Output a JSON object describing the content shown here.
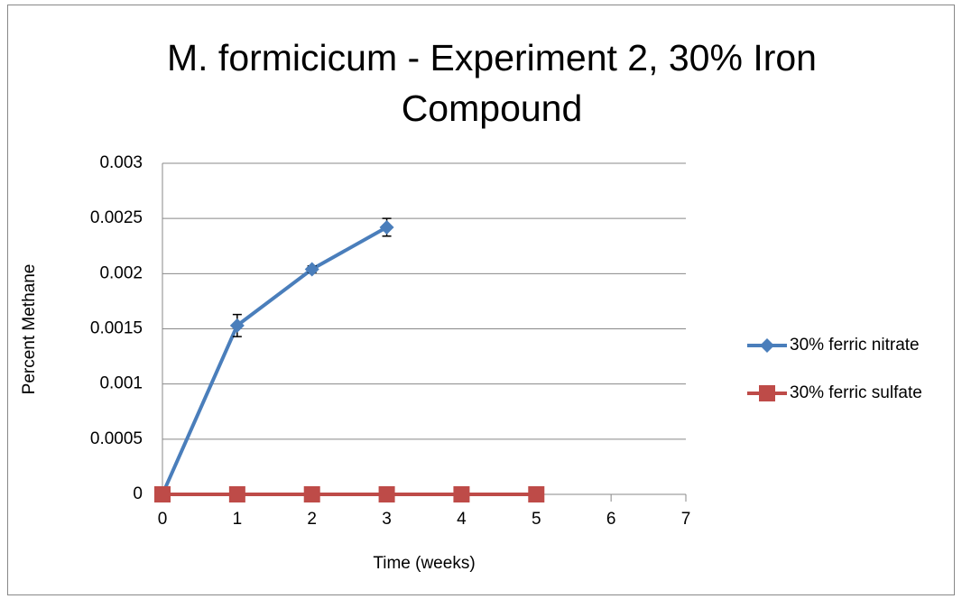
{
  "chart_data": {
    "type": "line",
    "title": "M. formicicum - Experiment 2, 30% Iron Compound",
    "xlabel": "Time (weeks)",
    "ylabel": "Percent Methane",
    "series": [
      {
        "name": "30% ferric nitrate",
        "color": "#4a7ebb",
        "marker": "diamond",
        "x": [
          0,
          1,
          2,
          3
        ],
        "values": [
          0,
          0.00153,
          0.00204,
          0.00242
        ],
        "errors": [
          null,
          0.0001,
          3e-05,
          8e-05
        ]
      },
      {
        "name": "30% ferric sulfate",
        "color": "#be4b48",
        "marker": "square",
        "x": [
          0,
          1,
          2,
          3,
          4,
          5
        ],
        "values": [
          0,
          0,
          0,
          0,
          0,
          0
        ]
      }
    ],
    "xlim": [
      0,
      7
    ],
    "xticks": [
      0,
      1,
      2,
      3,
      4,
      5,
      6,
      7
    ],
    "ylim": [
      0,
      0.003
    ],
    "yticks": [
      0,
      0.0005,
      0.001,
      0.0015,
      0.002,
      0.0025,
      0.003
    ],
    "grid": true,
    "legend": "right"
  }
}
